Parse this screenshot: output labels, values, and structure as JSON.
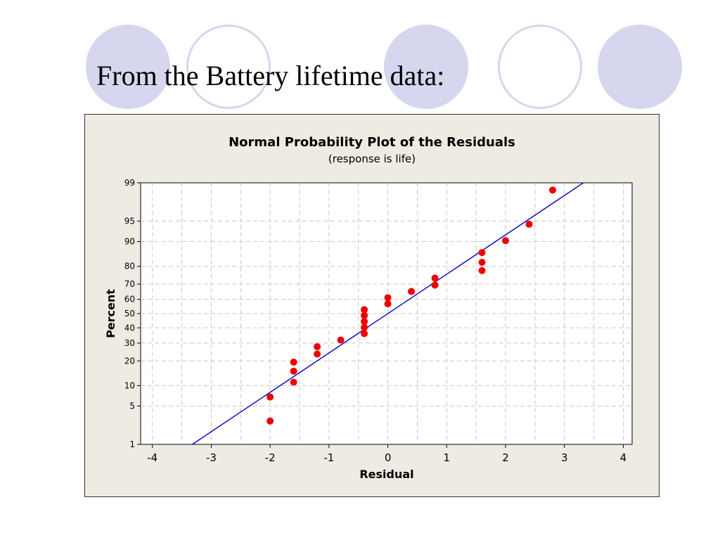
{
  "slide": {
    "title": "From the Battery lifetime data:"
  },
  "colors": {
    "circle_fill": "#d6d6ee",
    "chart_background": "#eeebe3",
    "plot_background": "#ffffff",
    "grid": "#c8c8c8",
    "fit_line": "#0000cc",
    "points": "#ee0000"
  },
  "chart_data": {
    "type": "scatter",
    "title": "Normal Probability Plot of the Residuals",
    "subtitle": "(response is life)",
    "xlabel": "Residual",
    "ylabel": "Percent",
    "y_scale": "normal-probability",
    "xlim": [
      -4.2,
      4.15
    ],
    "ylim": [
      1,
      99
    ],
    "grid": true,
    "x_ticks": [
      -4,
      -3,
      -2,
      -1,
      0,
      1,
      2,
      3,
      4
    ],
    "y_ticks": [
      1,
      5,
      10,
      20,
      30,
      40,
      50,
      60,
      70,
      80,
      90,
      95,
      99
    ],
    "points": [
      {
        "x": -2.0,
        "y": 2.8
      },
      {
        "x": -2.0,
        "y": 6.9
      },
      {
        "x": -1.6,
        "y": 11.1
      },
      {
        "x": -1.6,
        "y": 15.3
      },
      {
        "x": -1.6,
        "y": 19.4
      },
      {
        "x": -1.2,
        "y": 23.6
      },
      {
        "x": -1.2,
        "y": 27.8
      },
      {
        "x": -0.8,
        "y": 31.9
      },
      {
        "x": -0.4,
        "y": 36.1
      },
      {
        "x": -0.4,
        "y": 40.3
      },
      {
        "x": -0.4,
        "y": 44.4
      },
      {
        "x": -0.4,
        "y": 48.6
      },
      {
        "x": -0.4,
        "y": 52.8
      },
      {
        "x": 0.0,
        "y": 56.9
      },
      {
        "x": 0.0,
        "y": 61.1
      },
      {
        "x": 0.4,
        "y": 65.3
      },
      {
        "x": 0.8,
        "y": 69.4
      },
      {
        "x": 0.8,
        "y": 73.6
      },
      {
        "x": 1.6,
        "y": 77.8
      },
      {
        "x": 1.6,
        "y": 81.9
      },
      {
        "x": 1.6,
        "y": 86.1
      },
      {
        "x": 2.0,
        "y": 90.3
      },
      {
        "x": 2.4,
        "y": 94.4
      },
      {
        "x": 2.8,
        "y": 98.6
      }
    ],
    "fit_line": {
      "mean": 0.0,
      "sd": 1.428
    }
  }
}
